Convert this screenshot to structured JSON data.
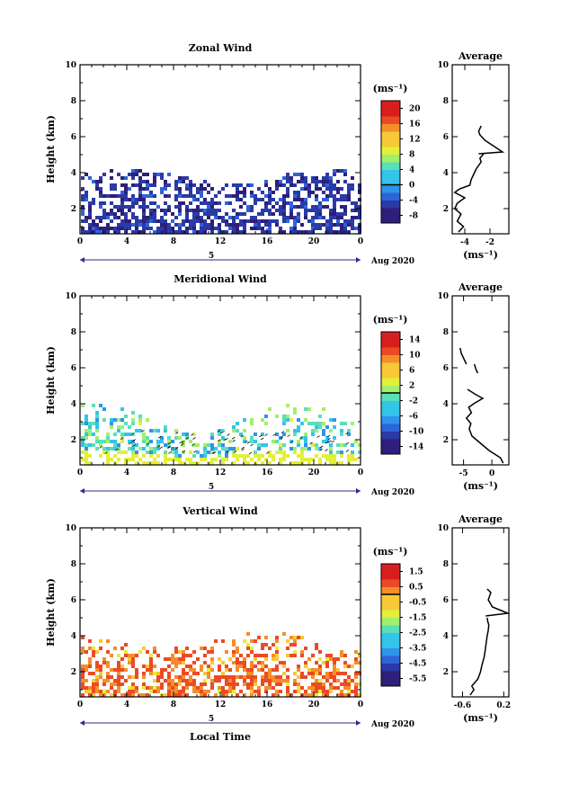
{
  "figure": {
    "x_label": "Local Time",
    "bottom_bar_label": "5",
    "date_label": "Aug 2020"
  },
  "chart_data": [
    {
      "type": "heatmap",
      "title": "Zonal Wind",
      "ylabel": "Height (km)",
      "xlabel": "Local Time",
      "x_ticks": [
        "0",
        "4",
        "8",
        "12",
        "16",
        "20",
        "0"
      ],
      "xlim": [
        0,
        24
      ],
      "y_ticks": [
        "2",
        "4",
        "6",
        "8",
        "10"
      ],
      "ylim": [
        0.6,
        10
      ],
      "colorbar": {
        "unit": "(ms⁻¹)",
        "ticks": [
          "-8",
          "-4",
          "0",
          "4",
          "8",
          "12",
          "16",
          "20"
        ],
        "range": [
          -10,
          22
        ]
      },
      "data_extent": {
        "height_top_km": [
          3.5,
          4.4
        ],
        "value_range": [
          -9,
          -4
        ]
      },
      "average": {
        "title": "Average",
        "xlabel": "(ms⁻¹)",
        "x_ticks": [
          "-4",
          "-2"
        ],
        "xlim": [
          -5,
          -0.5
        ],
        "y_ticks": [
          "2",
          "4",
          "6",
          "8",
          "10"
        ],
        "ylim": [
          0.6,
          10
        ],
        "profile": [
          [
            -4.5,
            0.7
          ],
          [
            -4.1,
            1.0
          ],
          [
            -4.6,
            1.3
          ],
          [
            -4.3,
            1.7
          ],
          [
            -4.8,
            2.0
          ],
          [
            -4.6,
            2.3
          ],
          [
            -4.0,
            2.6
          ],
          [
            -4.8,
            2.9
          ],
          [
            -4.4,
            3.1
          ],
          [
            -3.6,
            3.3
          ],
          [
            -3.5,
            3.6
          ],
          [
            -3.3,
            3.9
          ],
          [
            -3.1,
            4.2
          ],
          [
            -2.7,
            4.6
          ],
          [
            -2.8,
            4.8
          ],
          [
            -2.5,
            5.05
          ]
        ],
        "profile_upper": [
          [
            -2.9,
            5.05
          ],
          [
            -1.0,
            5.15
          ],
          [
            -2.4,
            5.8
          ],
          [
            -2.8,
            6.1
          ],
          [
            -2.9,
            6.3
          ],
          [
            -2.7,
            6.6
          ]
        ]
      }
    },
    {
      "type": "heatmap",
      "title": "Meridional Wind",
      "ylabel": "Height (km)",
      "xlabel": "Local Time",
      "x_ticks": [
        "0",
        "4",
        "8",
        "12",
        "16",
        "20",
        "0"
      ],
      "xlim": [
        0,
        24
      ],
      "y_ticks": [
        "2",
        "4",
        "6",
        "8",
        "10"
      ],
      "ylim": [
        0.6,
        10
      ],
      "colorbar": {
        "unit": "(ms⁻¹)",
        "ticks": [
          "-14",
          "-10",
          "-6",
          "-2",
          "2",
          "6",
          "10",
          "14"
        ],
        "range": [
          -16,
          16
        ]
      },
      "data_extent": {
        "height_top_km": [
          2.5,
          4.2
        ],
        "value_range": [
          -7,
          3
        ]
      },
      "average": {
        "title": "Average",
        "xlabel": "(ms⁻¹)",
        "x_ticks": [
          "-5",
          "0"
        ],
        "xlim": [
          -7,
          3
        ],
        "y_ticks": [
          "2",
          "4",
          "6",
          "8",
          "10"
        ],
        "ylim": [
          0.6,
          10
        ],
        "profile": [
          [
            2.0,
            0.7
          ],
          [
            1.5,
            1.0
          ],
          [
            -0.5,
            1.4
          ],
          [
            -2.0,
            1.8
          ],
          [
            -3.5,
            2.2
          ],
          [
            -4.0,
            2.6
          ],
          [
            -3.7,
            2.9
          ],
          [
            -4.5,
            3.2
          ],
          [
            -3.6,
            3.5
          ],
          [
            -4.1,
            3.8
          ],
          [
            -3.2,
            4.0
          ],
          [
            -1.6,
            4.3
          ],
          [
            -2.8,
            4.5
          ],
          [
            -4.3,
            4.8
          ]
        ],
        "profile_upper": [
          [
            -2.5,
            5.7
          ],
          [
            -2.8,
            5.9
          ],
          [
            -3.1,
            6.2
          ]
        ],
        "profile_upper2": [
          [
            -4.5,
            6.2
          ],
          [
            -5.4,
            6.8
          ],
          [
            -5.6,
            7.1
          ]
        ]
      }
    },
    {
      "type": "heatmap",
      "title": "Vertical Wind",
      "ylabel": "Height (km)",
      "xlabel": "Local Time",
      "x_ticks": [
        "0",
        "4",
        "8",
        "12",
        "16",
        "20",
        "0"
      ],
      "xlim": [
        0,
        24
      ],
      "y_ticks": [
        "2",
        "4",
        "6",
        "8",
        "10"
      ],
      "ylim": [
        0.6,
        10
      ],
      "colorbar": {
        "unit": "(ms⁻¹)",
        "ticks": [
          "-5.5",
          "-4.5",
          "-3.5",
          "-2.5",
          "-1.5",
          "-0.5",
          "0.5",
          "1.5"
        ],
        "range": [
          -6,
          2
        ]
      },
      "data_extent": {
        "height_top_km": [
          3.4,
          4.3
        ],
        "value_range": [
          -0.8,
          1.2
        ]
      },
      "average": {
        "title": "Average",
        "xlabel": "(ms⁻¹)",
        "x_ticks": [
          "-0.6",
          "0.2"
        ],
        "xlim": [
          -0.8,
          0.3
        ],
        "y_ticks": [
          "2",
          "4",
          "6",
          "8",
          "10"
        ],
        "ylim": [
          0.6,
          10
        ],
        "profile": [
          [
            -0.45,
            0.7
          ],
          [
            -0.38,
            1.0
          ],
          [
            -0.42,
            1.2
          ],
          [
            -0.3,
            1.6
          ],
          [
            -0.25,
            2.0
          ],
          [
            -0.22,
            2.4
          ],
          [
            -0.18,
            2.8
          ],
          [
            -0.16,
            3.2
          ],
          [
            -0.14,
            3.6
          ],
          [
            -0.12,
            4.0
          ],
          [
            -0.1,
            4.3
          ],
          [
            -0.09,
            4.6
          ],
          [
            -0.11,
            4.8
          ],
          [
            -0.12,
            5.0
          ]
        ],
        "profile_upper": [
          [
            -0.15,
            5.1
          ],
          [
            0.28,
            5.25
          ],
          [
            -0.02,
            5.6
          ],
          [
            -0.1,
            6.0
          ],
          [
            -0.05,
            6.4
          ],
          [
            -0.12,
            6.6
          ]
        ]
      }
    }
  ]
}
